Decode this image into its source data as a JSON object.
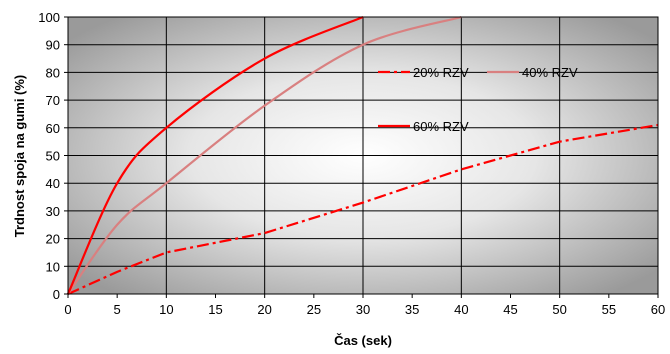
{
  "chart_data": {
    "type": "line",
    "xlabel": "Čas (sek)",
    "ylabel": "Trdnost  spoja na gumi (%)",
    "xlim": [
      0,
      60
    ],
    "ylim": [
      0,
      100
    ],
    "x_ticks": [
      "0",
      "10",
      "20",
      "30",
      "40",
      "50",
      "60"
    ],
    "x_minor_ticks": [
      "5",
      "15",
      "25",
      "35",
      "45",
      "55"
    ],
    "y_ticks": [
      "0",
      "10",
      "20",
      "30",
      "40",
      "50",
      "60",
      "70",
      "80",
      "90",
      "100"
    ],
    "grid": true,
    "legend_placement": "inside-top-right",
    "series": [
      {
        "name": "20% RZV",
        "color": "#ff0000",
        "dash": "dash-dot",
        "points": [
          [
            0,
            0
          ],
          [
            5,
            8
          ],
          [
            10,
            15
          ],
          [
            20,
            22
          ],
          [
            30,
            33
          ],
          [
            40,
            45
          ],
          [
            50,
            55
          ],
          [
            60,
            61
          ]
        ]
      },
      {
        "name": "40% RZV",
        "color": "#d98080",
        "dash": "solid",
        "points": [
          [
            0,
            0
          ],
          [
            5,
            25
          ],
          [
            10,
            40
          ],
          [
            20,
            68
          ],
          [
            30,
            90
          ],
          [
            40,
            100
          ]
        ]
      },
      {
        "name": "60% RZV",
        "color": "#ff0000",
        "dash": "solid",
        "points": [
          [
            0,
            0
          ],
          [
            5,
            40
          ],
          [
            10,
            60
          ],
          [
            20,
            85
          ],
          [
            30,
            100
          ]
        ]
      }
    ]
  }
}
